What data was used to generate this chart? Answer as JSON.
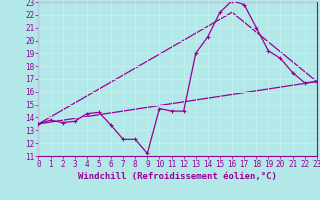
{
  "xlabel": "Windchill (Refroidissement éolien,°C)",
  "ylim": [
    11,
    23
  ],
  "xlim": [
    0,
    23
  ],
  "yticks": [
    11,
    12,
    13,
    14,
    15,
    16,
    17,
    18,
    19,
    20,
    21,
    22,
    23
  ],
  "xticks": [
    0,
    1,
    2,
    3,
    4,
    5,
    6,
    7,
    8,
    9,
    10,
    11,
    12,
    13,
    14,
    15,
    16,
    17,
    18,
    19,
    20,
    21,
    22,
    23
  ],
  "bg_color": "#b2e8e8",
  "grid_color": "#c8f0f0",
  "line_color": "#990099",
  "line1_x": [
    0,
    1,
    2,
    3,
    4,
    5,
    6,
    7,
    8,
    9,
    10,
    11,
    12,
    13,
    14,
    15,
    16,
    17,
    18,
    19,
    20,
    21,
    22,
    23
  ],
  "line1_y": [
    13.5,
    13.8,
    13.6,
    13.7,
    14.3,
    14.4,
    13.4,
    12.3,
    12.3,
    11.2,
    14.7,
    14.5,
    14.5,
    19.0,
    20.3,
    22.2,
    23.1,
    22.8,
    21.0,
    19.2,
    18.6,
    17.5,
    16.7,
    16.8
  ],
  "line2_x": [
    0,
    23
  ],
  "line2_y": [
    13.5,
    16.8
  ],
  "line3_x": [
    0,
    16,
    23
  ],
  "line3_y": [
    13.5,
    22.2,
    16.8
  ],
  "xlabel_fontsize": 6.5,
  "tick_fontsize": 5.5,
  "line_width": 0.9,
  "marker_size": 3.5
}
